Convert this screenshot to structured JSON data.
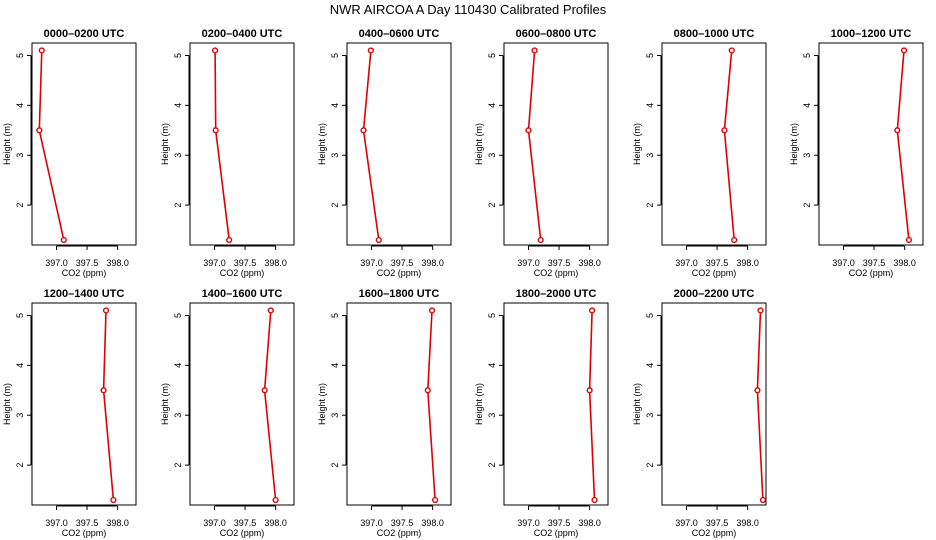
{
  "title": "NWR AIRCOA A  Day 110430  Calibrated Profiles",
  "colors": {
    "line": "#e00000",
    "axis": "#000000"
  },
  "chart_data": [
    {
      "type": "line",
      "title": "0000–0200 UTC",
      "xlabel": "CO2 (ppm)",
      "ylabel": "Height (m)",
      "xlim": [
        396.6,
        398.3
      ],
      "ylim": [
        1.2,
        5.25
      ],
      "xticks": [
        "397.0",
        "397.5",
        "398.0"
      ],
      "yticks": [
        "2",
        "3",
        "4",
        "5"
      ],
      "x": [
        397.12,
        396.72,
        396.76
      ],
      "y": [
        1.3,
        3.5,
        5.1
      ]
    },
    {
      "type": "line",
      "title": "0200–0400 UTC",
      "xlabel": "CO2 (ppm)",
      "ylabel": "Height (m)",
      "xlim": [
        396.6,
        398.3
      ],
      "ylim": [
        1.2,
        5.25
      ],
      "xticks": [
        "397.0",
        "397.5",
        "398.0"
      ],
      "yticks": [
        "2",
        "3",
        "4",
        "5"
      ],
      "x": [
        397.24,
        397.02,
        397.01
      ],
      "y": [
        1.3,
        3.5,
        5.1
      ]
    },
    {
      "type": "line",
      "title": "0400–0600 UTC",
      "xlabel": "CO2 (ppm)",
      "ylabel": "Height (m)",
      "xlim": [
        396.6,
        398.3
      ],
      "ylim": [
        1.2,
        5.25
      ],
      "xticks": [
        "397.0",
        "397.5",
        "398.0"
      ],
      "yticks": [
        "2",
        "3",
        "4",
        "5"
      ],
      "x": [
        397.12,
        396.87,
        396.99
      ],
      "y": [
        1.3,
        3.5,
        5.1
      ]
    },
    {
      "type": "line",
      "title": "0600–0800 UTC",
      "xlabel": "CO2 (ppm)",
      "ylabel": "Height (m)",
      "xlim": [
        396.6,
        398.3
      ],
      "ylim": [
        1.2,
        5.25
      ],
      "xticks": [
        "397.0",
        "397.5",
        "398.0"
      ],
      "yticks": [
        "2",
        "3",
        "4",
        "5"
      ],
      "x": [
        397.2,
        397.0,
        397.1
      ],
      "y": [
        1.3,
        3.5,
        5.1
      ]
    },
    {
      "type": "line",
      "title": "0800–1000 UTC",
      "xlabel": "CO2 (ppm)",
      "ylabel": "Height (m)",
      "xlim": [
        396.6,
        398.3
      ],
      "ylim": [
        1.2,
        5.25
      ],
      "xticks": [
        "397.0",
        "397.5",
        "398.0"
      ],
      "yticks": [
        "2",
        "3",
        "4",
        "5"
      ],
      "x": [
        397.78,
        397.62,
        397.74
      ],
      "y": [
        1.3,
        3.5,
        5.1
      ]
    },
    {
      "type": "line",
      "title": "1000–1200 UTC",
      "xlabel": "CO2 (ppm)",
      "ylabel": "Height (m)",
      "xlim": [
        396.6,
        398.3
      ],
      "ylim": [
        1.2,
        5.25
      ],
      "xticks": [
        "397.0",
        "397.5",
        "398.0"
      ],
      "yticks": [
        "2",
        "3",
        "4",
        "5"
      ],
      "x": [
        398.07,
        397.88,
        397.99
      ],
      "y": [
        1.3,
        3.5,
        5.1
      ]
    },
    {
      "type": "line",
      "title": "1200–1400 UTC",
      "xlabel": "CO2 (ppm)",
      "ylabel": "Height (m)",
      "xlim": [
        396.6,
        398.3
      ],
      "ylim": [
        1.2,
        5.25
      ],
      "xticks": [
        "397.0",
        "397.5",
        "398.0"
      ],
      "yticks": [
        "2",
        "3",
        "4",
        "5"
      ],
      "x": [
        397.93,
        397.77,
        397.81
      ],
      "y": [
        1.3,
        3.5,
        5.1
      ]
    },
    {
      "type": "line",
      "title": "1400–1600 UTC",
      "xlabel": "CO2 (ppm)",
      "ylabel": "Height (m)",
      "xlim": [
        396.6,
        398.3
      ],
      "ylim": [
        1.2,
        5.25
      ],
      "xticks": [
        "397.0",
        "397.5",
        "398.0"
      ],
      "yticks": [
        "2",
        "3",
        "4",
        "5"
      ],
      "x": [
        398.0,
        397.82,
        397.92
      ],
      "y": [
        1.3,
        3.5,
        5.1
      ]
    },
    {
      "type": "line",
      "title": "1600–1800 UTC",
      "xlabel": "CO2 (ppm)",
      "ylabel": "Height (m)",
      "xlim": [
        396.6,
        398.3
      ],
      "ylim": [
        1.2,
        5.25
      ],
      "xticks": [
        "397.0",
        "397.5",
        "398.0"
      ],
      "yticks": [
        "2",
        "3",
        "4",
        "5"
      ],
      "x": [
        398.04,
        397.92,
        397.99
      ],
      "y": [
        1.3,
        3.5,
        5.1
      ]
    },
    {
      "type": "line",
      "title": "1800–2000 UTC",
      "xlabel": "CO2 (ppm)",
      "ylabel": "Height (m)",
      "xlim": [
        396.6,
        398.3
      ],
      "ylim": [
        1.2,
        5.25
      ],
      "xticks": [
        "397.0",
        "397.5",
        "398.0"
      ],
      "yticks": [
        "2",
        "3",
        "4",
        "5"
      ],
      "x": [
        398.08,
        398.0,
        398.04
      ],
      "y": [
        1.3,
        3.5,
        5.1
      ]
    },
    {
      "type": "line",
      "title": "2000–2200 UTC",
      "xlabel": "CO2 (ppm)",
      "ylabel": "Height (m)",
      "xlim": [
        396.6,
        398.3
      ],
      "ylim": [
        1.2,
        5.25
      ],
      "xticks": [
        "397.0",
        "397.5",
        "398.0"
      ],
      "yticks": [
        "2",
        "3",
        "4",
        "5"
      ],
      "x": [
        398.25,
        398.16,
        398.21
      ],
      "y": [
        1.3,
        3.5,
        5.1
      ]
    }
  ]
}
